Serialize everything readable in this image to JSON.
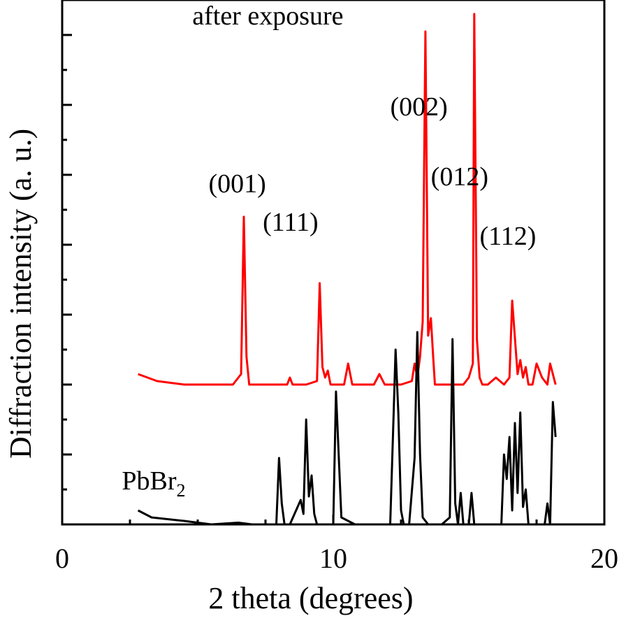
{
  "chart_data": {
    "type": "line",
    "xlabel": "2 theta (degrees)",
    "ylabel": "Diffraction intensity (a. u.)",
    "x_ticks": [
      "0",
      "10",
      "20"
    ],
    "xlim": [
      0,
      20
    ],
    "ylim": [
      0,
      15
    ],
    "grid": false,
    "legend": "none",
    "series": [
      {
        "name": "after exposure",
        "color": "#ff0000",
        "x": [
          2.8,
          3.5,
          4.5,
          5.5,
          6.3,
          6.6,
          6.7,
          6.8,
          6.9,
          7.0,
          7.5,
          8.3,
          8.4,
          8.5,
          9.0,
          9.4,
          9.5,
          9.6,
          9.7,
          9.8,
          9.9,
          10.0,
          10.2,
          10.4,
          10.55,
          10.7,
          11.0,
          11.5,
          11.7,
          11.9,
          12.5,
          12.9,
          13.0,
          13.1,
          13.2,
          13.3,
          13.4,
          13.5,
          13.6,
          13.7,
          13.75,
          13.85,
          13.95,
          14.1,
          14.4,
          14.8,
          15.0,
          15.15,
          15.2,
          15.3,
          15.4,
          15.5,
          15.7,
          16.0,
          16.3,
          16.5,
          16.6,
          16.8,
          16.9,
          17.0,
          17.1,
          17.2,
          17.35,
          17.5,
          17.7,
          17.9,
          18.0,
          18.2
        ],
        "y": [
          4.3,
          4.1,
          4.0,
          4.0,
          4.0,
          4.3,
          8.8,
          4.8,
          4.0,
          4.0,
          4.0,
          4.0,
          4.2,
          4.0,
          4.0,
          4.1,
          6.9,
          4.5,
          4.2,
          4.4,
          4.0,
          4.0,
          4.0,
          4.0,
          4.6,
          4.0,
          4.0,
          4.0,
          4.3,
          4.0,
          4.0,
          4.1,
          4.6,
          4.2,
          4.8,
          5.8,
          14.1,
          5.4,
          5.9,
          4.6,
          4.0,
          4.0,
          4.0,
          4.0,
          4.0,
          4.0,
          4.2,
          4.6,
          14.6,
          5.3,
          4.2,
          4.0,
          4.0,
          4.2,
          4.0,
          4.2,
          6.4,
          4.3,
          4.7,
          4.2,
          4.5,
          4.0,
          4.0,
          4.6,
          4.2,
          4.0,
          4.6,
          4.0
        ]
      },
      {
        "name": "PbBr2",
        "color": "#000000",
        "x": [
          2.8,
          3.3,
          4.5,
          5.5,
          6.5,
          7.0,
          7.9,
          8.0,
          8.1,
          8.2,
          8.4,
          8.8,
          8.9,
          9.0,
          9.1,
          9.2,
          9.3,
          9.4,
          9.6,
          9.9,
          10.0,
          10.1,
          10.3,
          10.8,
          11.5,
          12.1,
          12.2,
          12.3,
          12.4,
          12.5,
          12.6,
          12.8,
          13.0,
          13.1,
          13.2,
          13.3,
          13.5,
          14.0,
          14.3,
          14.4,
          14.5,
          14.6,
          14.7,
          14.8,
          15.0,
          15.1,
          15.2,
          15.4,
          15.7,
          16.0,
          16.2,
          16.3,
          16.4,
          16.5,
          16.6,
          16.7,
          16.8,
          16.9,
          17.0,
          17.1,
          17.2,
          17.4,
          17.6,
          17.8,
          17.9,
          18.0,
          18.1,
          18.2
        ],
        "y": [
          0.4,
          0.2,
          0.1,
          0.0,
          0.05,
          0.0,
          0.0,
          1.9,
          0.6,
          0.0,
          0.0,
          0.7,
          0.3,
          3.0,
          0.8,
          1.4,
          0.3,
          0.0,
          0.0,
          0.0,
          0.0,
          3.8,
          0.2,
          0.0,
          0.0,
          0.0,
          2.5,
          5.0,
          3.2,
          0.4,
          0.0,
          0.0,
          1.9,
          5.5,
          2.0,
          0.2,
          0.0,
          0.0,
          0.2,
          5.3,
          0.6,
          0.0,
          0.9,
          0.0,
          0.0,
          0.9,
          0.0,
          0.0,
          0.0,
          0.0,
          0.0,
          2.0,
          1.3,
          2.5,
          0.4,
          2.9,
          0.9,
          3.2,
          0.5,
          1.0,
          0.0,
          0.0,
          0.0,
          0.0,
          0.6,
          0.0,
          3.5,
          2.5
        ]
      }
    ],
    "annotations": [
      {
        "text": "after exposure",
        "x": 4.8,
        "y": 14.3
      },
      {
        "text": "PbBr",
        "sub": "2",
        "x": 2.2,
        "y": 1.0
      },
      {
        "text": "(001)",
        "x": 5.4,
        "y": 9.5
      },
      {
        "text": "(111)",
        "x": 7.4,
        "y": 8.4
      },
      {
        "text": "(002)",
        "x": 12.1,
        "y": 11.7
      },
      {
        "text": "(012)",
        "x": 13.6,
        "y": 9.7
      },
      {
        "text": "(112)",
        "x": 15.4,
        "y": 8.0
      }
    ]
  }
}
